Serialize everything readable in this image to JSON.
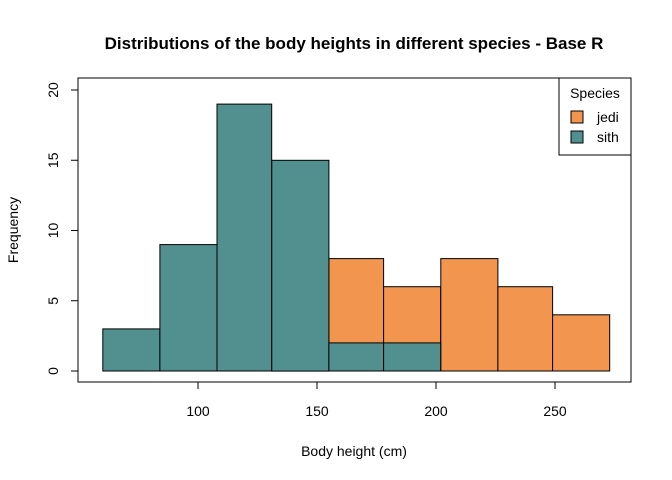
{
  "chart_data": {
    "type": "bar",
    "title": "Distributions of the body heights in different species - Base R",
    "xlabel": "Body height (cm)",
    "ylabel": "Frequency",
    "xlim": [
      50,
      280
    ],
    "ylim": [
      0,
      21
    ],
    "xticks": [
      100,
      150,
      200,
      250
    ],
    "yticks": [
      0,
      5,
      10,
      15,
      20
    ],
    "legend": {
      "title": "Species",
      "placement": "top-right",
      "entries": [
        {
          "name": "jedi",
          "color": "#F2954F"
        },
        {
          "name": "sith",
          "color": "#528F8F"
        }
      ]
    },
    "series": [
      {
        "name": "sith",
        "color": "#528F8F",
        "bins": [
          {
            "x0": 60,
            "x1": 84,
            "count": 3
          },
          {
            "x0": 84,
            "x1": 108,
            "count": 9
          },
          {
            "x0": 108,
            "x1": 131,
            "count": 19
          },
          {
            "x0": 131,
            "x1": 155,
            "count": 15
          },
          {
            "x0": 155,
            "x1": 178,
            "count": 2
          },
          {
            "x0": 178,
            "x1": 202,
            "count": 2
          }
        ]
      },
      {
        "name": "jedi",
        "color": "#F2954F",
        "bins": [
          {
            "x0": 155,
            "x1": 178,
            "count": 8
          },
          {
            "x0": 178,
            "x1": 202,
            "count": 6
          },
          {
            "x0": 202,
            "x1": 226,
            "count": 8
          },
          {
            "x0": 226,
            "x1": 249,
            "count": 6
          },
          {
            "x0": 249,
            "x1": 273,
            "count": 4
          }
        ]
      }
    ],
    "draw_order": [
      "jedi",
      "sith"
    ]
  }
}
